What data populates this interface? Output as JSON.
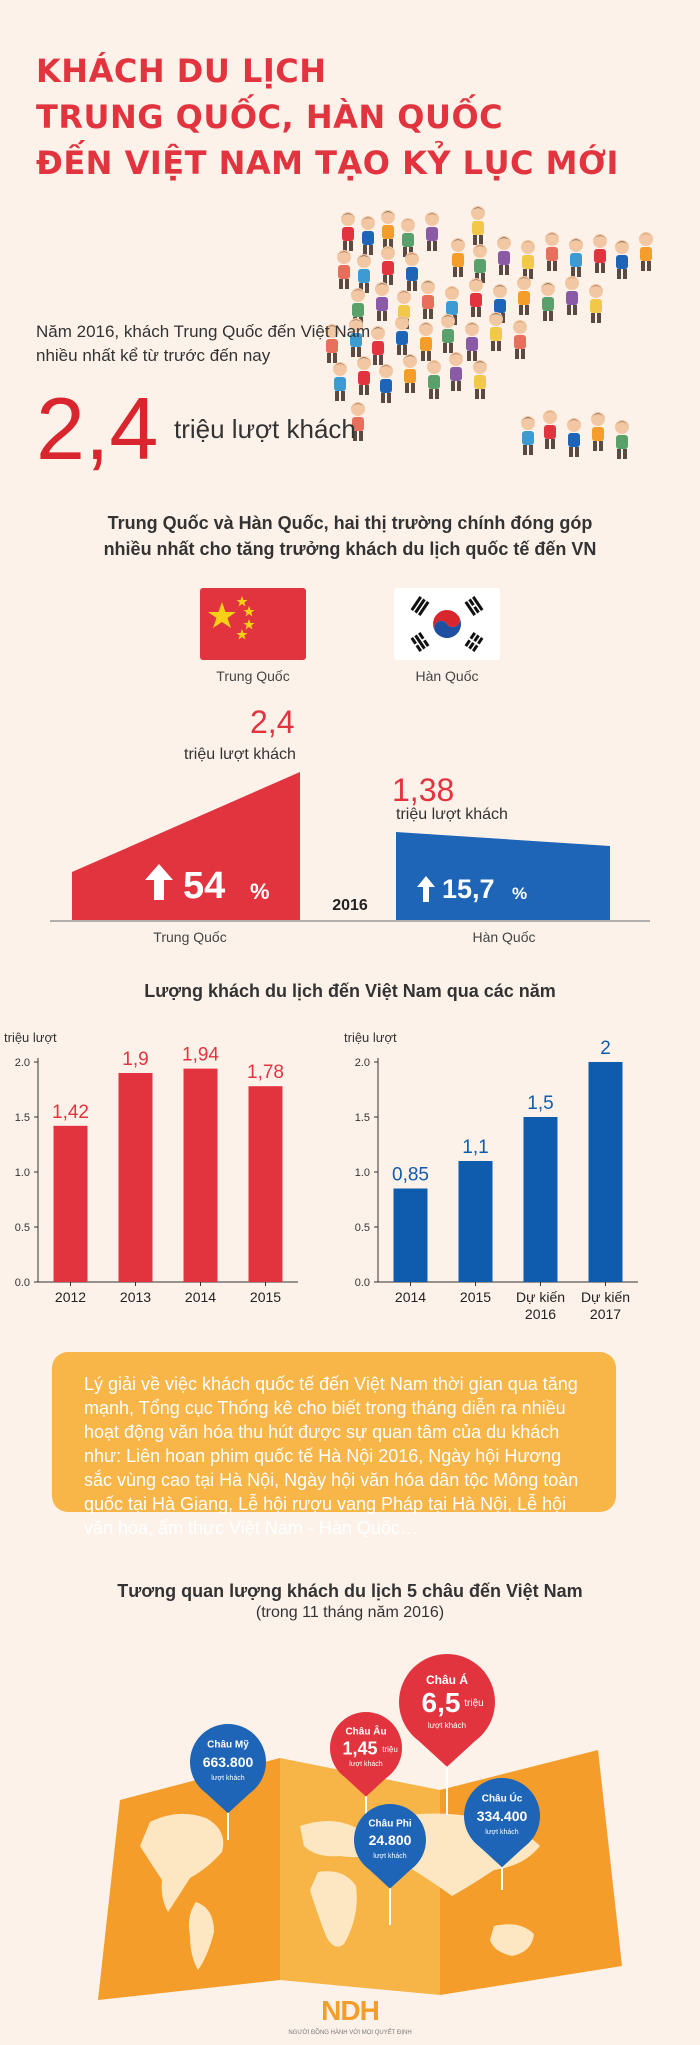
{
  "title": {
    "line1": "KHÁCH DU LỊCH",
    "line2": "TRUNG QUỐC, HÀN QUỐC",
    "line3": "ĐẾN VIỆT NAM TẠO KỶ LỤC MỚI"
  },
  "intro": {
    "text": "Năm 2016, khách Trung Quốc đến Việt Nam nhiều nhất kể từ trước đến nay",
    "big_value": "2,4",
    "big_unit": "triệu lượt khách"
  },
  "section1": {
    "title_line1": "Trung Quốc và Hàn Quốc, hai thị trường chính đóng góp",
    "title_line2": "nhiều nhất cho tăng trưởng khách du lịch quốc tế đến VN",
    "flags": [
      {
        "label": "Trung Quốc",
        "icon": "china-flag-icon"
      },
      {
        "label": "Hàn Quốc",
        "icon": "korea-flag-icon"
      }
    ],
    "year": "2016",
    "china": {
      "value": "2,4",
      "unit": "triệu lượt khách",
      "growth": "54",
      "pct": "%",
      "label": "Trung Quốc",
      "color": "#e2343f"
    },
    "korea": {
      "value": "1,38",
      "unit": "triệu lượt khách",
      "growth": "15,7",
      "pct": "%",
      "label": "Hàn Quốc",
      "color": "#1e64b7"
    }
  },
  "section2": {
    "title": "Lượng khách du lịch đến Việt Nam qua các năm"
  },
  "chart_data": [
    {
      "type": "bar",
      "categories": [
        "2012",
        "2013",
        "2014",
        "2015"
      ],
      "values": [
        1.42,
        1.9,
        1.94,
        1.78
      ],
      "value_labels": [
        "1,42",
        "1,9",
        "1,94",
        "1,78"
      ],
      "ylabel": "triệu lượt",
      "ylim": [
        0,
        2.0
      ],
      "yticks": [
        "0.0",
        "0.5",
        "1.0",
        "1.5",
        "2.0"
      ],
      "color": "#e2343f"
    },
    {
      "type": "bar",
      "categories": [
        "2014",
        "2015",
        "Dự kiến 2016",
        "Dự kiến 2017"
      ],
      "category_lines": [
        [
          "2014"
        ],
        [
          "2015"
        ],
        [
          "Dự kiến",
          "2016"
        ],
        [
          "Dự kiến",
          "2017"
        ]
      ],
      "values": [
        0.85,
        1.1,
        1.5,
        2.0
      ],
      "value_labels": [
        "0,85",
        "1,1",
        "1,5",
        "2"
      ],
      "ylabel": "triệu lượt",
      "ylim": [
        0,
        2.0
      ],
      "yticks": [
        "0.0",
        "0.5",
        "1.0",
        "1.5",
        "2.0"
      ],
      "color": "#0f5cae"
    }
  ],
  "explain": {
    "text": "Lý giải về việc khách quốc tế đến Việt Nam thời gian qua tăng mạnh, Tổng cục Thống kê cho biết trong tháng diễn ra nhiều hoạt động văn hóa thu hút được sự quan tâm của du khách như: Liên hoan phim quốc tế Hà Nội 2016, Ngày hội Hương sắc vùng cao tại Hà Nội, Ngày hội văn hóa dân tộc Mông toàn quốc tại Hà Giang, Lễ hội rượu vang Pháp tại Hà Nội, Lễ hội văn hóa, ẩm thực Việt Nam - Hàn Quốc…"
  },
  "section3": {
    "title": "Tương quan lượng khách du lịch 5 châu đến Việt Nam",
    "subtitle": "(trong 11 tháng năm 2016)",
    "pins": [
      {
        "name": "Châu Á",
        "value": "6,5",
        "unit": "triệu",
        "sub": "lượt khách",
        "color": "#e2343f"
      },
      {
        "name": "Châu Âu",
        "value": "1,45",
        "unit": "triệu",
        "sub": "lượt khách",
        "color": "#e2343f"
      },
      {
        "name": "Châu Mỹ",
        "value": "663.800",
        "unit": "",
        "sub": "lượt khách",
        "color": "#1e64b7"
      },
      {
        "name": "Châu Phi",
        "value": "24.800",
        "unit": "",
        "sub": "lượt khách",
        "color": "#1e64b7"
      },
      {
        "name": "Châu Úc",
        "value": "334.400",
        "unit": "",
        "sub": "lượt khách",
        "color": "#1e64b7"
      }
    ]
  },
  "logo": {
    "text": "NDH",
    "tagline": "NGƯỜI ĐỒNG HÀNH VỚI MỌI QUYẾT ĐỊNH"
  },
  "colors": {
    "red": "#e2343f",
    "blue": "#0f5cae",
    "orange": "#f8b548",
    "background": "#fdf2ea"
  }
}
